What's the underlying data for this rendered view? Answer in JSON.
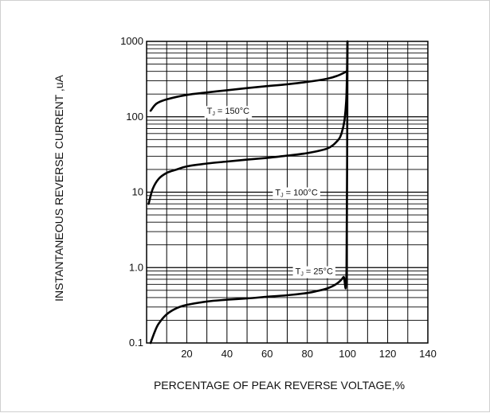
{
  "chart_data": {
    "type": "line",
    "xlabel": "PERCENTAGE OF PEAK REVERSE VOLTAGE,%",
    "ylabel": "INSTANTANEOUS REVERSE CURRENT ,uA",
    "xlim": [
      0,
      140
    ],
    "ylim": [
      0.1,
      1000
    ],
    "yscale": "log",
    "grid": true,
    "x_ticks": [
      20,
      40,
      60,
      80,
      100,
      120,
      140
    ],
    "x_tick_labels": [
      "20",
      "40",
      "60",
      "80",
      "100",
      "120",
      "140"
    ],
    "y_ticks": [
      0.1,
      1,
      10,
      100,
      1000
    ],
    "y_tick_labels": [
      "0.1",
      "1.0",
      "10",
      "100",
      "1000"
    ],
    "series": [
      {
        "name": "T_J = 150°C",
        "label_parts": {
          "pre": "T",
          "sub": "J",
          "post": " = 150°C"
        },
        "label_at": {
          "x": 30,
          "y": 120
        },
        "x": [
          2,
          5,
          10,
          20,
          30,
          40,
          50,
          60,
          70,
          80,
          90,
          95,
          98,
          99.5
        ],
        "y": [
          120,
          150,
          170,
          195,
          210,
          225,
          240,
          255,
          270,
          290,
          320,
          350,
          380,
          400
        ]
      },
      {
        "name": "T_J = 100°C",
        "label_parts": {
          "pre": "T",
          "sub": "J",
          "post": " = 100°C"
        },
        "label_at": {
          "x": 64,
          "y": 10
        },
        "x": [
          1,
          3,
          6,
          10,
          15,
          20,
          30,
          40,
          50,
          60,
          70,
          80,
          90,
          95,
          97,
          98.5,
          99.5,
          100
        ],
        "y": [
          7,
          11,
          15,
          18,
          20,
          22,
          24,
          25.5,
          27,
          28.5,
          30.5,
          33,
          38,
          48,
          60,
          90,
          200,
          1000
        ]
      },
      {
        "name": "T_J = 25°C",
        "label_parts": {
          "pre": "T",
          "sub": "J",
          "post": " = 25°C"
        },
        "label_at": {
          "x": 74,
          "y": 0.9
        },
        "x": [
          2,
          4,
          6,
          10,
          15,
          20,
          30,
          40,
          50,
          60,
          70,
          80,
          85,
          90,
          95,
          98,
          99.5,
          100
        ],
        "y": [
          0.1,
          0.14,
          0.18,
          0.24,
          0.29,
          0.32,
          0.355,
          0.375,
          0.39,
          0.41,
          0.43,
          0.46,
          0.49,
          0.53,
          0.62,
          0.75,
          0.95,
          1000
        ]
      }
    ]
  }
}
